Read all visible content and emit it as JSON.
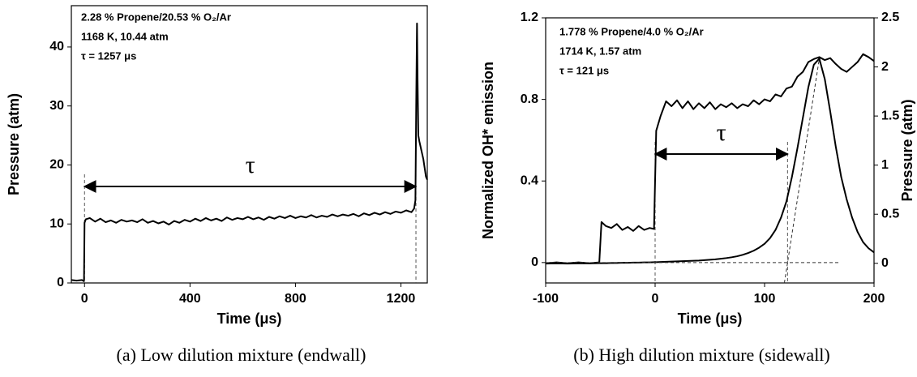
{
  "chart_data": [
    {
      "type": "line",
      "xlabel": "Time (μs)",
      "ylabel": "Pressure (atm)",
      "caption": "(a) Low dilution mixture (endwall)",
      "annotations": [
        "2.28 % Propene/20.53 % O₂/Ar",
        "1168 K, 10.44 atm",
        "τ = 1257 μs"
      ],
      "tau_label": "τ",
      "time_markers": [
        0,
        1257
      ],
      "xlim": [
        -50,
        1300
      ],
      "xticks": [
        0,
        400,
        800,
        1200
      ],
      "ylim": [
        0,
        47
      ],
      "yticks": [
        0,
        10,
        20,
        30,
        40
      ],
      "x": [
        -50,
        -30,
        -10,
        -2,
        0,
        5,
        20,
        40,
        60,
        80,
        100,
        120,
        140,
        160,
        180,
        200,
        220,
        240,
        260,
        280,
        300,
        320,
        340,
        360,
        380,
        400,
        420,
        440,
        460,
        480,
        500,
        520,
        540,
        560,
        580,
        600,
        620,
        640,
        660,
        680,
        700,
        720,
        740,
        760,
        780,
        800,
        820,
        840,
        860,
        880,
        900,
        920,
        940,
        960,
        980,
        1000,
        1020,
        1040,
        1060,
        1080,
        1100,
        1120,
        1140,
        1160,
        1180,
        1200,
        1220,
        1240,
        1250,
        1255,
        1258,
        1261,
        1263,
        1266,
        1270,
        1275,
        1280,
        1285,
        1290,
        1295,
        1300
      ],
      "series": [
        {
          "color": "#000000",
          "values": [
            0.5,
            0.4,
            0.5,
            0.3,
            10.2,
            10.8,
            11.0,
            10.4,
            10.9,
            10.3,
            10.6,
            10.2,
            10.7,
            10.4,
            10.6,
            10.3,
            10.8,
            10.2,
            10.5,
            10.1,
            10.4,
            9.9,
            10.5,
            10.2,
            10.7,
            10.4,
            10.9,
            10.5,
            11.0,
            10.6,
            10.9,
            10.5,
            11.1,
            10.7,
            11.0,
            10.8,
            11.2,
            10.8,
            11.1,
            10.7,
            11.2,
            10.9,
            11.3,
            11.0,
            11.4,
            11.0,
            11.3,
            11.1,
            11.5,
            11.1,
            11.4,
            11.2,
            11.6,
            11.3,
            11.6,
            11.4,
            11.7,
            11.3,
            11.8,
            11.5,
            11.9,
            11.6,
            12.0,
            11.7,
            12.1,
            11.9,
            12.3,
            12.0,
            12.6,
            14,
            30,
            44,
            35,
            25,
            24,
            23,
            22,
            21,
            19.5,
            18,
            17.5
          ]
        }
      ]
    },
    {
      "type": "line",
      "xlabel": "Time (μs)",
      "ylabel": "Normalized OH* emission",
      "y2label": "Pressure (atm)",
      "caption": "(b) High dilution mixture (sidewall)",
      "annotations": [
        "1.778 % Propene/4.0 % O₂/Ar",
        "1714 K, 1.57 atm",
        "τ = 121 μs"
      ],
      "tau_label": "τ",
      "time_markers": [
        0,
        121
      ],
      "xlim": [
        -100,
        200
      ],
      "xticks": [
        -100,
        0,
        100,
        200
      ],
      "ylim": [
        -0.1,
        1.2
      ],
      "yticks": [
        0,
        0.4,
        0.8,
        1.2
      ],
      "y2lim": [
        -0.2,
        2.5
      ],
      "y2ticks": [
        0,
        0.5,
        1,
        1.5,
        2,
        2.5
      ],
      "x": [
        -100,
        -90,
        -80,
        -70,
        -60,
        -51,
        -49,
        -45,
        -40,
        -35,
        -30,
        -25,
        -20,
        -15,
        -10,
        -5,
        -1,
        1,
        5,
        10,
        15,
        20,
        25,
        30,
        35,
        40,
        45,
        50,
        55,
        60,
        65,
        70,
        75,
        80,
        85,
        90,
        95,
        100,
        105,
        110,
        115,
        120,
        125,
        130,
        135,
        140,
        145,
        150,
        155,
        160,
        165,
        170,
        175,
        180,
        185,
        190,
        195,
        200
      ],
      "series": [
        {
          "color": "#000000",
          "axis": "y2",
          "values": [
            0,
            0.01,
            0,
            0.01,
            0,
            0.01,
            0.42,
            0.38,
            0.36,
            0.4,
            0.34,
            0.37,
            0.33,
            0.38,
            0.34,
            0.36,
            0.35,
            1.35,
            1.5,
            1.65,
            1.6,
            1.66,
            1.58,
            1.65,
            1.57,
            1.63,
            1.58,
            1.64,
            1.57,
            1.62,
            1.59,
            1.63,
            1.58,
            1.62,
            1.6,
            1.66,
            1.62,
            1.67,
            1.65,
            1.72,
            1.7,
            1.78,
            1.8,
            1.9,
            1.95,
            2.05,
            2.08,
            2.1,
            2.07,
            2.09,
            2.03,
            1.98,
            1.95,
            2.0,
            2.05,
            2.13,
            2.1,
            2.06
          ]
        },
        {
          "color": "#000000",
          "values": [
            -0.005,
            -0.004,
            -0.005,
            -0.004,
            -0.004,
            -0.003,
            -0.003,
            -0.003,
            -0.002,
            -0.002,
            -0.001,
            -0.001,
            0,
            0,
            0.001,
            0.001,
            0.002,
            0.002,
            0.003,
            0.004,
            0.005,
            0.006,
            0.007,
            0.008,
            0.009,
            0.01,
            0.012,
            0.014,
            0.016,
            0.019,
            0.022,
            0.026,
            0.031,
            0.038,
            0.047,
            0.058,
            0.073,
            0.092,
            0.12,
            0.16,
            0.22,
            0.3,
            0.42,
            0.56,
            0.71,
            0.86,
            0.97,
            1.0,
            0.9,
            0.74,
            0.57,
            0.42,
            0.31,
            0.22,
            0.15,
            0.1,
            0.07,
            0.05
          ]
        }
      ]
    }
  ]
}
